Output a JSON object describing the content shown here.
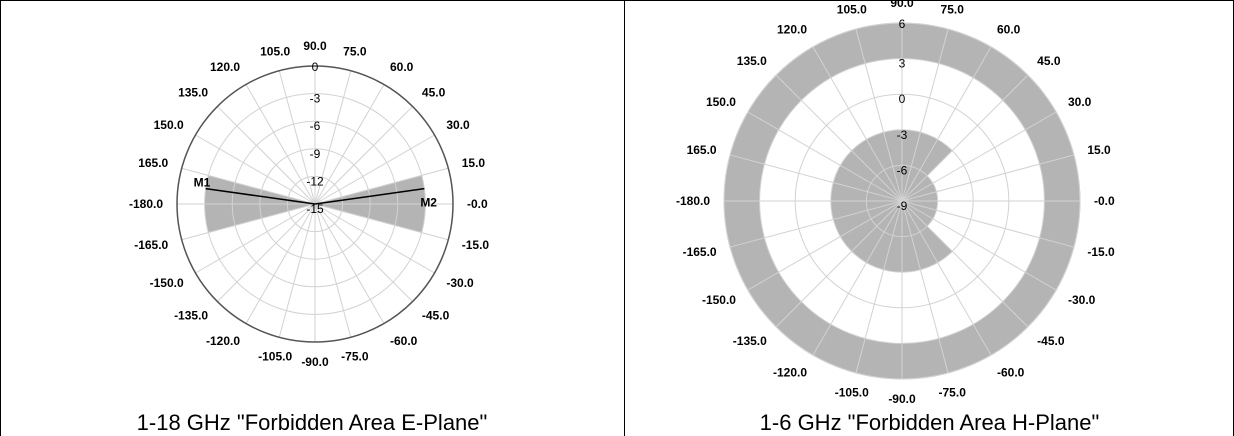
{
  "captions": {
    "left": "1-18 GHz \"Forbidden Area E-Plane\"",
    "right": "1-6 GHz \"Forbidden Area H-Plane\""
  },
  "colors": {
    "forbidden_fill": "#b4b4b4",
    "grid": "#d2d2d2",
    "axis": "#000000"
  },
  "chart_data": [
    {
      "type": "polar",
      "caption": "1-18 GHz \"Forbidden Area E-Plane\"",
      "angle_unit": "degrees",
      "angle_tick_labels": [
        "105.0",
        "90.0",
        "75.0",
        "60.0",
        "45.0",
        "30.0",
        "15.0",
        "-0.0",
        "-15.0",
        "-30.0",
        "-45.0",
        "-60.0",
        "-75.0",
        "-90.0",
        "-105.0",
        "-120.0",
        "-135.0",
        "-150.0",
        "-165.0",
        "-180.0",
        "165.0",
        "150.0",
        "135.0",
        "120.0"
      ],
      "angle_tick_values": [
        105,
        90,
        75,
        60,
        45,
        30,
        15,
        0,
        -15,
        -30,
        -45,
        -60,
        -75,
        -90,
        -105,
        -120,
        -135,
        -150,
        -165,
        -180,
        165,
        150,
        135,
        120
      ],
      "radial_tick_labels": [
        "0",
        "-3",
        "-6",
        "-9",
        "-12",
        "-15"
      ],
      "radial_range": [
        -15,
        0
      ],
      "forbidden_regions": [
        {
          "angle_from": -15,
          "angle_to": 15,
          "radial_from": -15,
          "radial_to": -3
        },
        {
          "angle_from": 165,
          "angle_to": 195,
          "radial_from": -15,
          "radial_to": -3
        }
      ],
      "markers": [
        {
          "label": "M1",
          "angle": 172,
          "radial": -3
        },
        {
          "label": "M2",
          "angle": 8,
          "radial": -3
        }
      ]
    },
    {
      "type": "polar",
      "caption": "1-6 GHz \"Forbidden Area H-Plane\"",
      "angle_unit": "degrees",
      "angle_tick_labels": [
        "105.0",
        "90.0",
        "75.0",
        "60.0",
        "45.0",
        "30.0",
        "15.0",
        "-0.0",
        "-15.0",
        "-30.0",
        "-45.0",
        "-60.0",
        "-75.0",
        "-105.0",
        "-90.0",
        "-120.0",
        "-135.0",
        "-150.0",
        "-165.0",
        "-180.0",
        "165.0",
        "150.0",
        "135.0",
        "120.0"
      ],
      "angle_tick_values": [
        105,
        90,
        75,
        60,
        45,
        30,
        15,
        0,
        -15,
        -30,
        -45,
        -60,
        -75,
        -105,
        -90,
        -120,
        -135,
        -150,
        -165,
        -180,
        165,
        150,
        135,
        120
      ],
      "radial_tick_labels": [
        "6",
        "3",
        "0",
        "-3",
        "-6",
        "-9"
      ],
      "radial_range": [
        -9,
        6
      ],
      "forbidden_regions": [
        {
          "angle_from": 45,
          "angle_to": 315,
          "radial_from": 3,
          "radial_to": 6
        },
        {
          "angle_from": -45,
          "angle_to": 45,
          "radial_from": 3,
          "radial_to": 6
        },
        {
          "angle_from": 45,
          "angle_to": 315,
          "radial_from": -9,
          "radial_to": -3
        },
        {
          "angle_from": -45,
          "angle_to": 45,
          "radial_from": -9,
          "radial_to": -6
        }
      ],
      "notes_in_image": []
    }
  ]
}
